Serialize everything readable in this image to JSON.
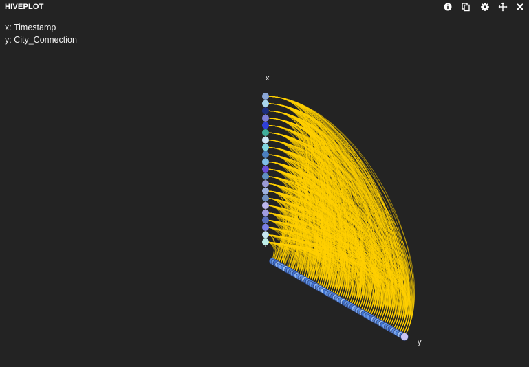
{
  "panel": {
    "title": "HIVEPLOT",
    "toolbar": [
      {
        "icon": "info-icon"
      },
      {
        "icon": "copy-icon"
      },
      {
        "icon": "gear-icon"
      },
      {
        "icon": "move-icon"
      },
      {
        "icon": "close-icon"
      }
    ]
  },
  "legend": {
    "x_line": "x: Timestamp",
    "y_line": "y: City_Connection"
  },
  "chart_data": {
    "type": "hiveplot",
    "axes": [
      {
        "name": "x",
        "label": "x",
        "node_count": 21,
        "node_colors": [
          "#8aa6d6",
          "#a9d6ee",
          "#1d2f7e",
          "#7d7fd8",
          "#2f3fd8",
          "#3fae9c",
          "#cfe7f7",
          "#7fd6e0",
          "#4a7fbf",
          "#7fbde7",
          "#6a4fd6",
          "#5f8fbf",
          "#9a9ad6",
          "#9fb3e0",
          "#6f8fbf",
          "#b9b4ec",
          "#a09be0",
          "#5a6fbf",
          "#7a7fe6",
          "#c6e6f0",
          "#bfeee8"
        ]
      },
      {
        "name": "y",
        "label": "y",
        "node_count": 70,
        "node_colors": [
          "#4d7fd6",
          "#6a9ae6",
          "#3f6fd0",
          "#8ab2f0",
          "#5a8ae0",
          "#7aa6ee",
          "#4f86dc",
          "#9cc0f4",
          "#3d74d4",
          "#6c9ce8"
        ]
      }
    ],
    "edge_color": "#ffd000",
    "edge_count": 700
  }
}
